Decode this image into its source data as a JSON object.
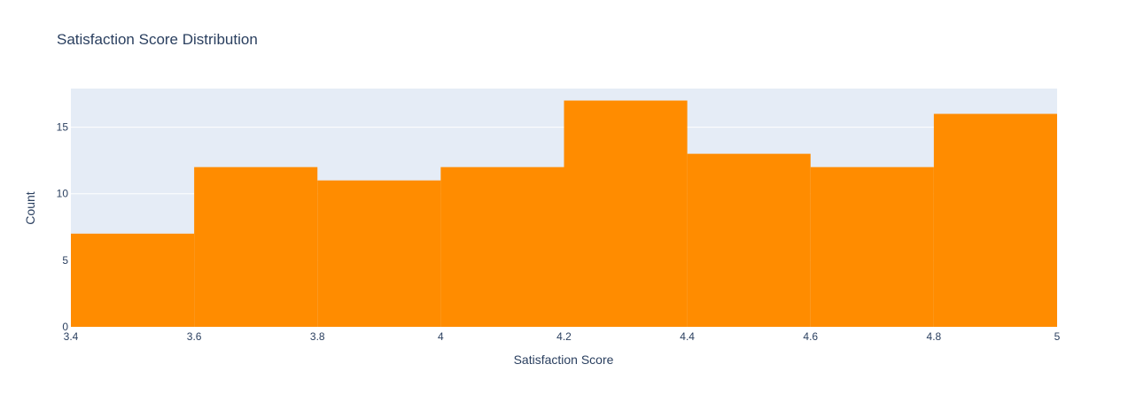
{
  "chart_data": {
    "type": "histogram",
    "title": "Satisfaction Score Distribution",
    "xlabel": "Satisfaction Score",
    "ylabel": "Count",
    "xlim": [
      3.4,
      5.0
    ],
    "ylim": [
      0,
      17.9
    ],
    "bins": [
      {
        "start": 3.4,
        "end": 3.6,
        "count": 7
      },
      {
        "start": 3.6,
        "end": 3.8,
        "count": 12
      },
      {
        "start": 3.8,
        "end": 4.0,
        "count": 11
      },
      {
        "start": 4.0,
        "end": 4.2,
        "count": 12
      },
      {
        "start": 4.2,
        "end": 4.4,
        "count": 17
      },
      {
        "start": 4.4,
        "end": 4.6,
        "count": 13
      },
      {
        "start": 4.6,
        "end": 4.8,
        "count": 12
      },
      {
        "start": 4.8,
        "end": 5.0,
        "count": 16
      }
    ],
    "x_ticks": [
      {
        "value": 3.4,
        "label": "3.4"
      },
      {
        "value": 3.6,
        "label": "3.6"
      },
      {
        "value": 3.8,
        "label": "3.8"
      },
      {
        "value": 4.0,
        "label": "4"
      },
      {
        "value": 4.2,
        "label": "4.2"
      },
      {
        "value": 4.4,
        "label": "4.4"
      },
      {
        "value": 4.6,
        "label": "4.6"
      },
      {
        "value": 4.8,
        "label": "4.8"
      },
      {
        "value": 5.0,
        "label": "5"
      }
    ],
    "y_ticks": [
      {
        "value": 0,
        "label": "0"
      },
      {
        "value": 5,
        "label": "5"
      },
      {
        "value": 10,
        "label": "10"
      },
      {
        "value": 15,
        "label": "15"
      }
    ],
    "grid": true,
    "legend": false,
    "colors": {
      "bar": "#ff8c00",
      "plot_bg": "#e5ecf6",
      "grid": "#ffffff",
      "text": "#2a3f5f"
    }
  }
}
